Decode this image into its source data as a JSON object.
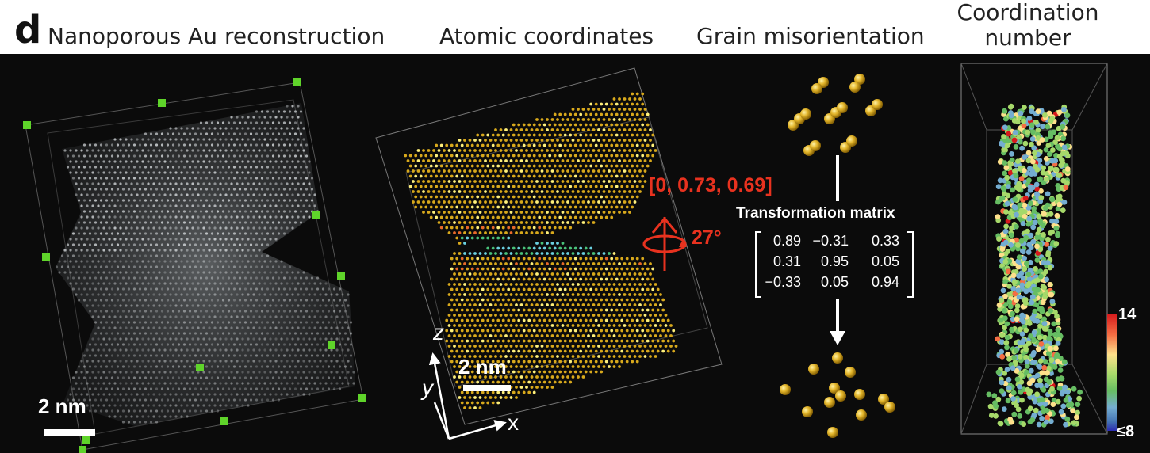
{
  "panel_letter": "d",
  "titles": {
    "reconstruction": "Nanoporous Au reconstruction",
    "coordinates": "Atomic coordinates",
    "misorientation": "Grain misorientation",
    "coordination_line1": "Coordination",
    "coordination_line2": "number"
  },
  "scale_bars": {
    "reconstruction": "2 nm",
    "coordinates": "2 nm"
  },
  "axes": {
    "z": "z",
    "y": "y",
    "x": "x"
  },
  "rotation": {
    "axis": "[0, 0.73, 0.69]",
    "angle": "27°"
  },
  "transformation": {
    "title": "Transformation matrix",
    "rows": [
      [
        "0.89",
        "−0.31",
        "0.33"
      ],
      [
        "0.31",
        "0.95",
        "0.05"
      ],
      [
        "−0.33",
        "0.05",
        "0.94"
      ]
    ]
  },
  "colorbar": {
    "max": "14",
    "min": "≤8",
    "colors": [
      "#d7191c",
      "#f46d43",
      "#fee08b",
      "#a6d96a",
      "#66bd63",
      "#74add1",
      "#4575b4",
      "#2b2bb0"
    ]
  },
  "colors": {
    "atom_gold": "#e3b52a",
    "marker_green": "#5fd42a",
    "accent_red": "#e8321f",
    "background": "#0b0b0b"
  }
}
